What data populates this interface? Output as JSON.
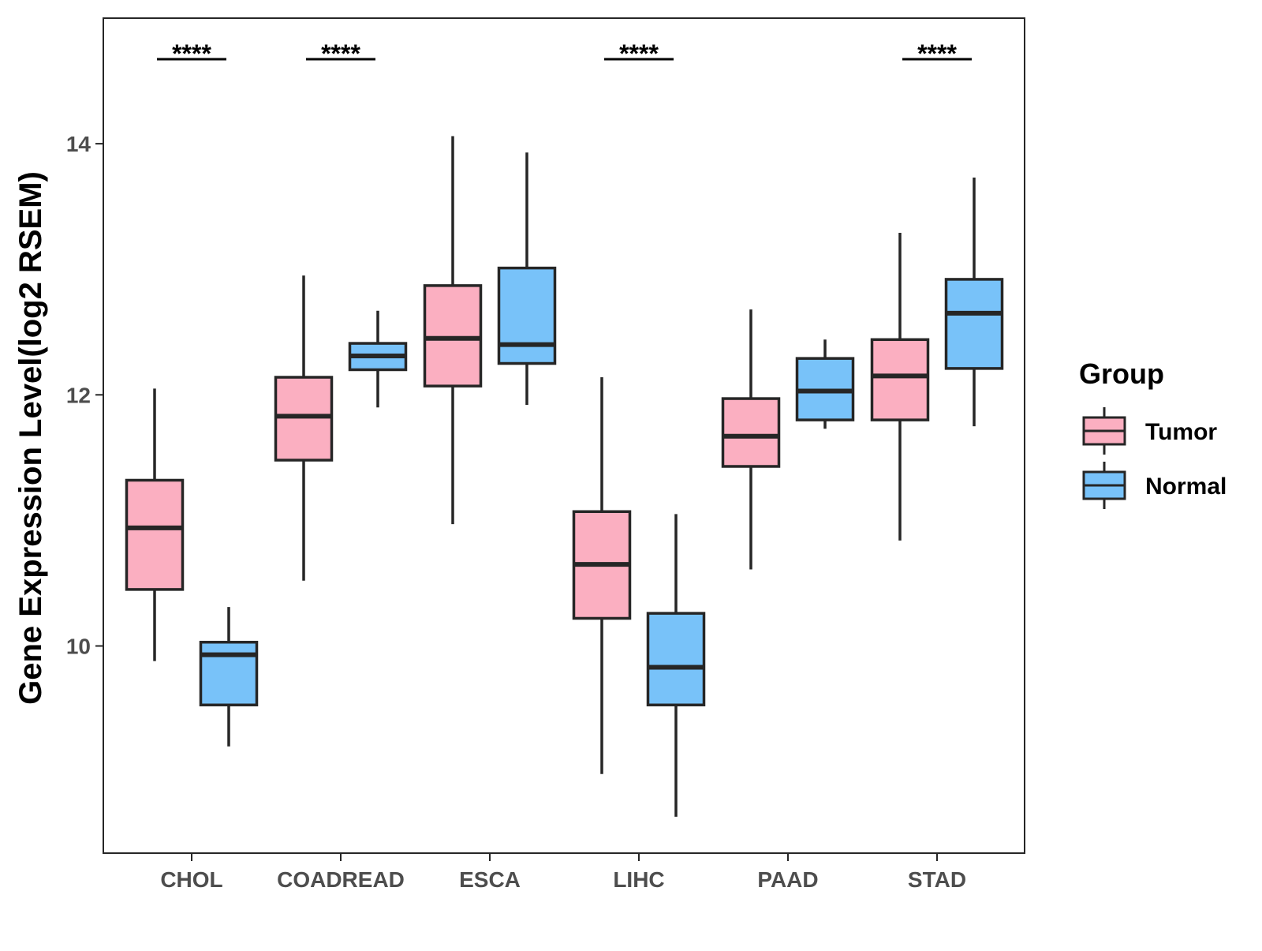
{
  "chart_data": {
    "type": "boxplot",
    "title": "",
    "xlabel": "",
    "ylabel": "Gene Expression Level(log2 RSEM)",
    "ylim": [
      8.35,
      15.0
    ],
    "yticks": [
      10,
      12,
      14
    ],
    "ytick_labels": [
      "10",
      "12",
      "14"
    ],
    "grid": false,
    "legend_position": "right",
    "categories": [
      "CHOL",
      "COADREAD",
      "ESCA",
      "LIHC",
      "PAAD",
      "STAD"
    ],
    "series": [
      {
        "name": "Tumor",
        "color": "#fbafc1",
        "boxes": [
          {
            "min": 9.88,
            "q1": 10.45,
            "median": 10.94,
            "q3": 11.32,
            "max": 12.05
          },
          {
            "min": 10.52,
            "q1": 11.48,
            "median": 11.83,
            "q3": 12.14,
            "max": 12.95
          },
          {
            "min": 10.97,
            "q1": 12.07,
            "median": 12.45,
            "q3": 12.87,
            "max": 14.06
          },
          {
            "min": 8.98,
            "q1": 10.22,
            "median": 10.65,
            "q3": 11.07,
            "max": 12.14
          },
          {
            "min": 10.61,
            "q1": 11.43,
            "median": 11.67,
            "q3": 11.97,
            "max": 12.68
          },
          {
            "min": 10.84,
            "q1": 11.8,
            "median": 12.15,
            "q3": 12.44,
            "max": 13.29
          }
        ]
      },
      {
        "name": "Normal",
        "color": "#78c2f9",
        "boxes": [
          {
            "min": 9.2,
            "q1": 9.53,
            "median": 9.93,
            "q3": 10.03,
            "max": 10.31
          },
          {
            "min": 11.9,
            "q1": 12.2,
            "median": 12.31,
            "q3": 12.41,
            "max": 12.67
          },
          {
            "min": 11.92,
            "q1": 12.25,
            "median": 12.4,
            "q3": 13.01,
            "max": 13.93
          },
          {
            "min": 8.64,
            "q1": 9.53,
            "median": 9.83,
            "q3": 10.26,
            "max": 11.05
          },
          {
            "min": 11.73,
            "q1": 11.8,
            "median": 12.03,
            "q3": 12.29,
            "max": 12.44
          },
          {
            "min": 11.75,
            "q1": 12.21,
            "median": 12.65,
            "q3": 12.92,
            "max": 13.73
          }
        ]
      }
    ],
    "significance": [
      "****",
      "****",
      "",
      "****",
      "",
      "****"
    ],
    "legend": {
      "title": "Group",
      "entries": [
        "Tumor",
        "Normal"
      ]
    }
  },
  "colors": {
    "tumor": "#fbafc1",
    "normal": "#78c2f9",
    "outline": "#262626",
    "axis": "#262626"
  }
}
